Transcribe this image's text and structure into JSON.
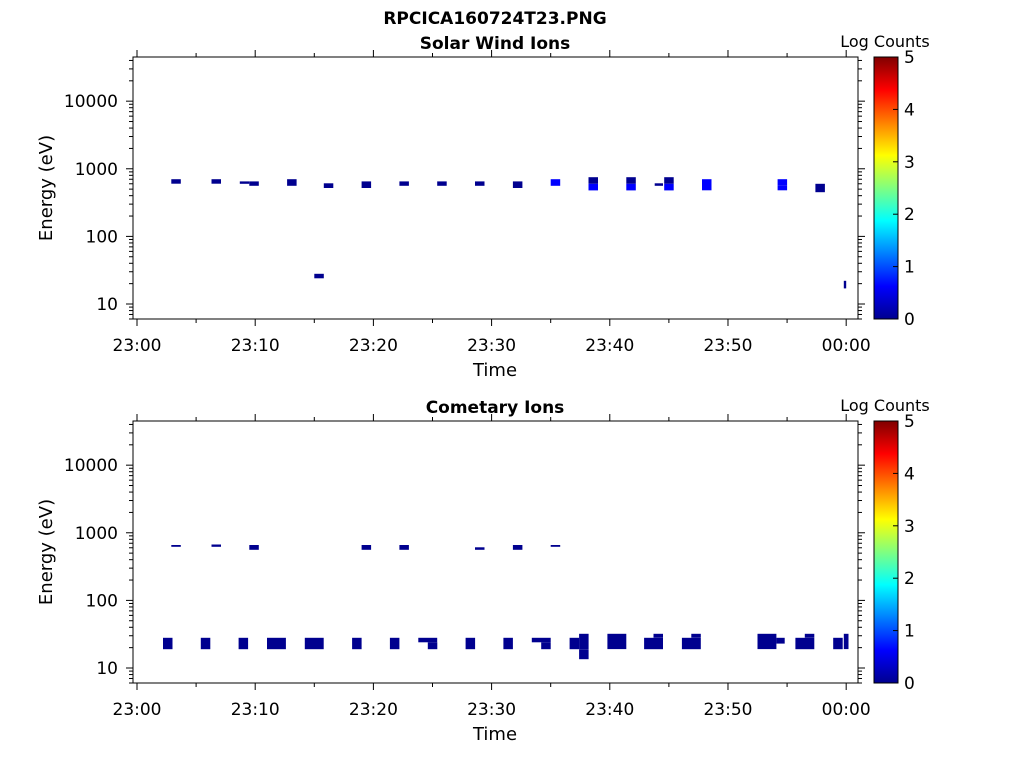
{
  "figure": {
    "title": "RPCICA160724T23.PNG"
  },
  "colormap": [
    "#00008f",
    "#0000ff",
    "#0080ff",
    "#00ffff",
    "#80ff80",
    "#ffff00",
    "#ff8000",
    "#ff0000",
    "#800000"
  ],
  "chart_data": [
    {
      "type": "heatmap",
      "title": "Solar Wind Ions",
      "xlabel": "Time",
      "ylabel": "Energy (eV)",
      "x_ticks": [
        "23:00",
        "23:10",
        "23:20",
        "23:30",
        "23:40",
        "23:50",
        "00:00"
      ],
      "y_ticks": [
        "10",
        "100",
        "1000",
        "10000"
      ],
      "y_scale": "log",
      "ylim": [
        6,
        45000
      ],
      "xlim_minutes": [
        0,
        61
      ],
      "colorbar": {
        "label": "Log Counts",
        "ticks": [
          "0",
          "1",
          "2",
          "3",
          "4",
          "5"
        ],
        "range": [
          0,
          5
        ]
      },
      "cells": [
        {
          "t0": 2.9,
          "t1": 3.7,
          "e0": 600,
          "e1": 700,
          "v": 0
        },
        {
          "t0": 6.3,
          "t1": 7.1,
          "e0": 600,
          "e1": 700,
          "v": 0
        },
        {
          "t0": 8.7,
          "t1": 9.5,
          "e0": 600,
          "e1": 650,
          "v": 0
        },
        {
          "t0": 9.5,
          "t1": 10.3,
          "e0": 560,
          "e1": 650,
          "v": 0
        },
        {
          "t0": 12.7,
          "t1": 13.5,
          "e0": 560,
          "e1": 700,
          "v": 0
        },
        {
          "t0": 15.0,
          "t1": 15.8,
          "e0": 24,
          "e1": 28,
          "v": 0
        },
        {
          "t0": 15.8,
          "t1": 16.6,
          "e0": 520,
          "e1": 610,
          "v": 0
        },
        {
          "t0": 19.0,
          "t1": 19.8,
          "e0": 520,
          "e1": 650,
          "v": 0
        },
        {
          "t0": 22.2,
          "t1": 23.0,
          "e0": 560,
          "e1": 650,
          "v": 0
        },
        {
          "t0": 25.4,
          "t1": 26.2,
          "e0": 560,
          "e1": 650,
          "v": 0
        },
        {
          "t0": 28.6,
          "t1": 29.4,
          "e0": 560,
          "e1": 650,
          "v": 0
        },
        {
          "t0": 31.8,
          "t1": 32.6,
          "e0": 520,
          "e1": 650,
          "v": 0
        },
        {
          "t0": 35.0,
          "t1": 35.8,
          "e0": 560,
          "e1": 700,
          "v": 0.4
        },
        {
          "t0": 38.2,
          "t1": 39.0,
          "e0": 600,
          "e1": 750,
          "v": 0.1
        },
        {
          "t0": 38.2,
          "t1": 39.0,
          "e0": 480,
          "e1": 600,
          "v": 0.6
        },
        {
          "t0": 41.4,
          "t1": 42.2,
          "e0": 600,
          "e1": 750,
          "v": 0.1
        },
        {
          "t0": 41.4,
          "t1": 42.2,
          "e0": 480,
          "e1": 600,
          "v": 0.4
        },
        {
          "t0": 43.8,
          "t1": 44.5,
          "e0": 560,
          "e1": 610,
          "v": 0.2
        },
        {
          "t0": 44.6,
          "t1": 45.4,
          "e0": 600,
          "e1": 750,
          "v": 0.1
        },
        {
          "t0": 44.6,
          "t1": 45.4,
          "e0": 480,
          "e1": 600,
          "v": 0.5
        },
        {
          "t0": 47.8,
          "t1": 48.6,
          "e0": 480,
          "e1": 700,
          "v": 0.5
        },
        {
          "t0": 54.2,
          "t1": 55.0,
          "e0": 560,
          "e1": 700,
          "v": 0.5
        },
        {
          "t0": 54.2,
          "t1": 55.0,
          "e0": 480,
          "e1": 560,
          "v": 0.8
        },
        {
          "t0": 57.4,
          "t1": 58.2,
          "e0": 450,
          "e1": 600,
          "v": 0.1
        },
        {
          "t0": 59.8,
          "t1": 60.0,
          "e0": 17,
          "e1": 22,
          "v": 0.3
        }
      ]
    },
    {
      "type": "heatmap",
      "title": "Cometary Ions",
      "xlabel": "Time",
      "ylabel": "Energy (eV)",
      "x_ticks": [
        "23:00",
        "23:10",
        "23:20",
        "23:30",
        "23:40",
        "23:50",
        "00:00"
      ],
      "y_ticks": [
        "10",
        "100",
        "1000",
        "10000"
      ],
      "y_scale": "log",
      "ylim": [
        6,
        45000
      ],
      "xlim_minutes": [
        0,
        61
      ],
      "colorbar": {
        "label": "Log Counts",
        "ticks": [
          "0",
          "1",
          "2",
          "3",
          "4",
          "5"
        ],
        "range": [
          0,
          5
        ]
      },
      "cells": [
        {
          "t0": 2.9,
          "t1": 3.7,
          "e0": 620,
          "e1": 660,
          "v": 0
        },
        {
          "t0": 6.3,
          "t1": 7.1,
          "e0": 620,
          "e1": 670,
          "v": 0
        },
        {
          "t0": 9.5,
          "t1": 10.3,
          "e0": 560,
          "e1": 660,
          "v": 0
        },
        {
          "t0": 19.0,
          "t1": 19.8,
          "e0": 560,
          "e1": 660,
          "v": 0
        },
        {
          "t0": 22.2,
          "t1": 23.0,
          "e0": 560,
          "e1": 660,
          "v": 0
        },
        {
          "t0": 28.6,
          "t1": 29.4,
          "e0": 560,
          "e1": 610,
          "v": 0
        },
        {
          "t0": 31.8,
          "t1": 32.6,
          "e0": 560,
          "e1": 660,
          "v": 0
        },
        {
          "t0": 35.0,
          "t1": 35.8,
          "e0": 620,
          "e1": 660,
          "v": 0
        },
        {
          "t0": 2.2,
          "t1": 3.0,
          "e0": 19,
          "e1": 28,
          "v": 0
        },
        {
          "t0": 5.4,
          "t1": 6.2,
          "e0": 19,
          "e1": 28,
          "v": 0
        },
        {
          "t0": 8.6,
          "t1": 9.4,
          "e0": 19,
          "e1": 28,
          "v": 0
        },
        {
          "t0": 11.0,
          "t1": 12.6,
          "e0": 19,
          "e1": 28,
          "v": 0
        },
        {
          "t0": 14.2,
          "t1": 15.8,
          "e0": 19,
          "e1": 28,
          "v": 0
        },
        {
          "t0": 18.2,
          "t1": 19.0,
          "e0": 19,
          "e1": 28,
          "v": 0
        },
        {
          "t0": 21.4,
          "t1": 22.2,
          "e0": 19,
          "e1": 28,
          "v": 0
        },
        {
          "t0": 23.8,
          "t1": 25.4,
          "e0": 24,
          "e1": 28,
          "v": 0
        },
        {
          "t0": 24.6,
          "t1": 25.4,
          "e0": 19,
          "e1": 24,
          "v": 0
        },
        {
          "t0": 27.8,
          "t1": 28.6,
          "e0": 19,
          "e1": 28,
          "v": 0
        },
        {
          "t0": 31.0,
          "t1": 31.8,
          "e0": 19,
          "e1": 28,
          "v": 0
        },
        {
          "t0": 33.4,
          "t1": 35.0,
          "e0": 24,
          "e1": 28,
          "v": 0
        },
        {
          "t0": 34.2,
          "t1": 35.0,
          "e0": 19,
          "e1": 24,
          "v": 0
        },
        {
          "t0": 36.6,
          "t1": 37.4,
          "e0": 19,
          "e1": 28,
          "v": 0
        },
        {
          "t0": 37.4,
          "t1": 38.2,
          "e0": 19,
          "e1": 32,
          "v": 0
        },
        {
          "t0": 37.4,
          "t1": 38.2,
          "e0": 13.5,
          "e1": 19,
          "v": 0
        },
        {
          "t0": 39.8,
          "t1": 41.4,
          "e0": 19,
          "e1": 32,
          "v": 0
        },
        {
          "t0": 42.9,
          "t1": 44.5,
          "e0": 19,
          "e1": 28,
          "v": 0
        },
        {
          "t0": 43.7,
          "t1": 44.5,
          "e0": 28,
          "e1": 32,
          "v": 0
        },
        {
          "t0": 46.1,
          "t1": 47.7,
          "e0": 19,
          "e1": 28,
          "v": 0
        },
        {
          "t0": 46.9,
          "t1": 47.7,
          "e0": 28,
          "e1": 32,
          "v": 0
        },
        {
          "t0": 52.5,
          "t1": 54.1,
          "e0": 19,
          "e1": 32,
          "v": 0
        },
        {
          "t0": 54.1,
          "t1": 54.8,
          "e0": 23,
          "e1": 28,
          "v": 0
        },
        {
          "t0": 55.7,
          "t1": 57.3,
          "e0": 19,
          "e1": 28,
          "v": 0
        },
        {
          "t0": 56.5,
          "t1": 57.3,
          "e0": 28,
          "e1": 32,
          "v": 0
        },
        {
          "t0": 58.9,
          "t1": 59.7,
          "e0": 19,
          "e1": 28,
          "v": 0
        },
        {
          "t0": 59.8,
          "t1": 60.2,
          "e0": 19,
          "e1": 32,
          "v": 0
        }
      ]
    }
  ]
}
